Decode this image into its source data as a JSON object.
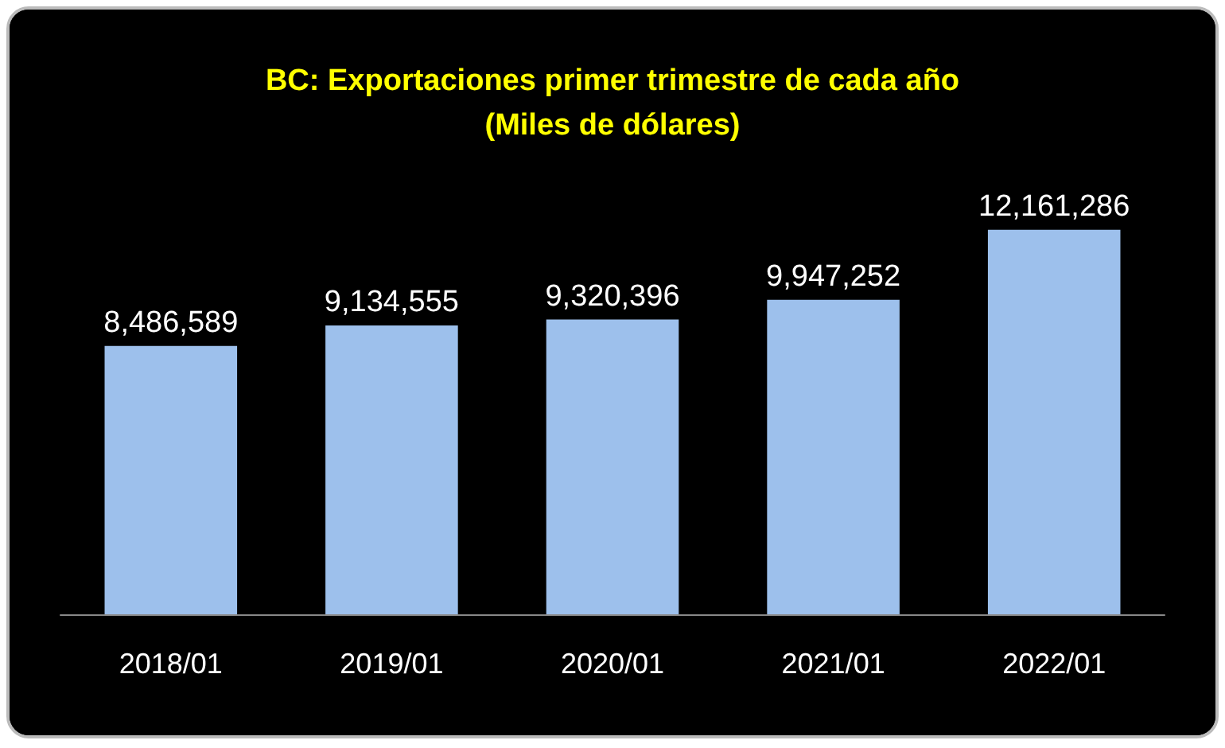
{
  "chart_data": {
    "type": "bar",
    "title": "BC: Exportaciones primer trimestre de cada año\n(Miles de dólares)",
    "categories": [
      "2018/01",
      "2019/01",
      "2020/01",
      "2021/01",
      "2022/01"
    ],
    "values": [
      8486589,
      9134555,
      9320396,
      9947252,
      12161286
    ],
    "value_labels": [
      "8,486,589",
      "9,134,555",
      "9,320,396",
      "9,947,252",
      "12,161,286"
    ],
    "color": "#9dc0ec"
  }
}
